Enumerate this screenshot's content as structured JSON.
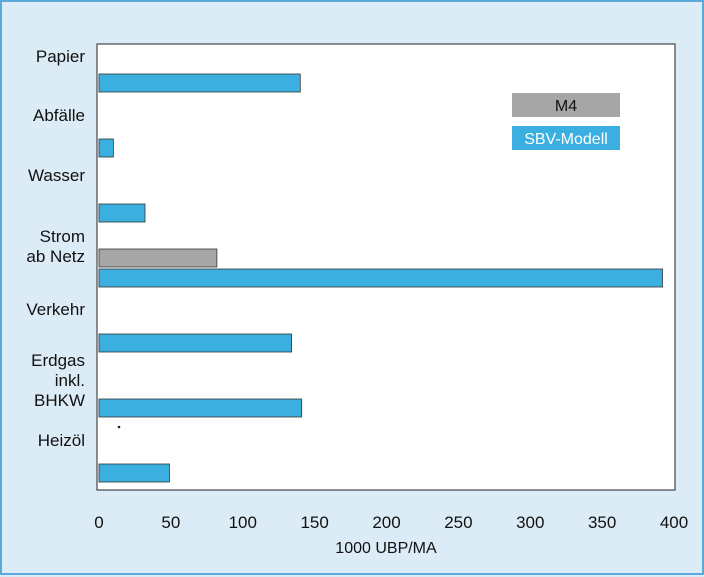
{
  "chart_data": {
    "type": "bar",
    "orientation": "horizontal",
    "categories": [
      [
        "Papier"
      ],
      [
        "Abfälle"
      ],
      [
        "Wasser"
      ],
      [
        "Strom",
        "ab Netz"
      ],
      [
        "Verkehr"
      ],
      [
        "Erdgas",
        "inkl.",
        "BHKW"
      ],
      [
        "Heizöl"
      ]
    ],
    "series": [
      {
        "name": "M4",
        "color": "#a6a6a6",
        "values": [
          0,
          0,
          0,
          82,
          0,
          0,
          0
        ]
      },
      {
        "name": "SBV-Modell",
        "color": "#3bb0e0",
        "values": [
          140,
          10,
          32,
          392,
          134,
          141,
          49
        ]
      }
    ],
    "xlabel": "1000 UBP/MA",
    "ylabel": "",
    "xlim": [
      0,
      400
    ],
    "xticks": [
      0,
      50,
      100,
      150,
      200,
      250,
      300,
      350,
      400
    ],
    "grid": false,
    "legend_position": "top-right"
  }
}
